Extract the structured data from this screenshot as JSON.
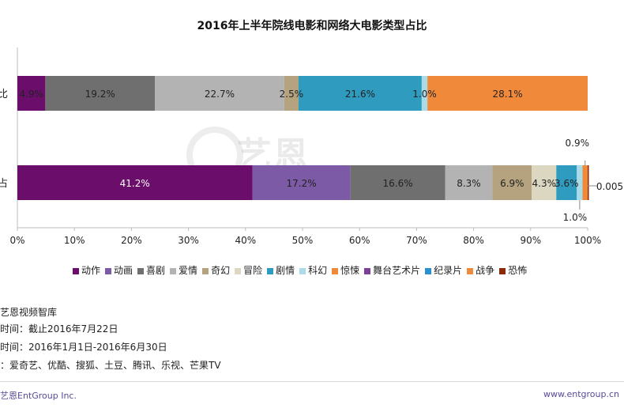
{
  "chart_data": {
    "type": "bar",
    "orientation": "horizontal-stacked-percent",
    "title": "2016年上半年院线电影和网络大电影类型占比",
    "categories": [
      "比",
      "占"
    ],
    "xlim": [
      0,
      100
    ],
    "x_ticks": [
      "0%",
      "10%",
      "20%",
      "30%",
      "40%",
      "50%",
      "60%",
      "70%",
      "80%",
      "90%",
      "100%"
    ],
    "legend_position": "bottom",
    "series": [
      {
        "name": "动作",
        "color": "#6b0d6b",
        "values": [
          4.9,
          41.2
        ],
        "labels": [
          "4.9%",
          "41.2%"
        ]
      },
      {
        "name": "动画",
        "color": "#7d5aa6",
        "values": [
          0,
          17.2
        ],
        "labels": [
          "",
          "17.2%"
        ]
      },
      {
        "name": "喜剧",
        "color": "#6f6f6f",
        "values": [
          19.2,
          16.6
        ],
        "labels": [
          "19.2%",
          "16.6%"
        ]
      },
      {
        "name": "爱情",
        "color": "#b3b3b3",
        "values": [
          22.7,
          8.3
        ],
        "labels": [
          "22.7%",
          "8.3%"
        ]
      },
      {
        "name": "奇幻",
        "color": "#b5a27e",
        "values": [
          2.5,
          6.9
        ],
        "labels": [
          "2.5%",
          "6.9%"
        ]
      },
      {
        "name": "冒险",
        "color": "#dcd7c0",
        "values": [
          0,
          4.3
        ],
        "labels": [
          "",
          "4.3%"
        ]
      },
      {
        "name": "剧情",
        "color": "#2e9bbf",
        "values": [
          21.6,
          3.6
        ],
        "labels": [
          "21.6%",
          "3.6%"
        ]
      },
      {
        "name": "科幻",
        "color": "#a9dbe8",
        "values": [
          1.0,
          1.0
        ],
        "labels": [
          "1.0%",
          "1.0%"
        ]
      },
      {
        "name": "惊悚",
        "color": "#f08a3a",
        "values": [
          28.1,
          0.9
        ],
        "labels": [
          "28.1%",
          "0.9%"
        ]
      },
      {
        "name": "舞台艺术片",
        "color": "#7b3f9a",
        "values": [
          0,
          0
        ],
        "labels": [
          "",
          ""
        ]
      },
      {
        "name": "纪录片",
        "color": "#2c8fd0",
        "values": [
          0,
          0
        ],
        "labels": [
          "",
          ""
        ]
      },
      {
        "name": "战争",
        "color": "#f08a3a",
        "values": [
          0,
          0
        ],
        "labels": [
          "",
          ""
        ]
      },
      {
        "name": "恐怖",
        "color": "#8a2a0a",
        "values": [
          0,
          0.005
        ],
        "labels": [
          "",
          "0.005"
        ]
      }
    ]
  },
  "notes": {
    "source": "艺恩视频智库",
    "stat_time": "时间：截止2016年7月22日",
    "period": "时间：2016年1月1日-2016年6月30日",
    "platforms": "：爱奇艺、优酷、搜狐、土豆、腾讯、乐视、芒果TV"
  },
  "watermark": "艺恩",
  "footer": {
    "left": "艺恩EntGroup Inc.",
    "right": "www.entgroup.cn"
  }
}
